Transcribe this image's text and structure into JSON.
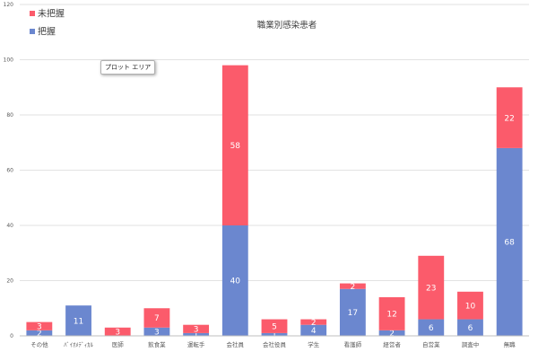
{
  "chart_data": {
    "type": "bar",
    "stacked": true,
    "title": "職業別感染患者",
    "categories": [
      "その他",
      "ﾊﾞｲｵﾒﾃﾞｨｶﾙ",
      "医師",
      "飲食業",
      "運転手",
      "会社員",
      "会社役員",
      "学生",
      "看護師",
      "経営者",
      "自営業",
      "調査中",
      "無職"
    ],
    "series": [
      {
        "name": "把握",
        "color": "#6b87cf",
        "values": [
          2,
          11,
          0,
          3,
          1,
          40,
          1,
          4,
          17,
          2,
          6,
          6,
          68
        ]
      },
      {
        "name": "未把握",
        "color": "#fb5b6b",
        "values": [
          3,
          0,
          3,
          7,
          3,
          58,
          5,
          2,
          2,
          12,
          23,
          10,
          22
        ]
      }
    ],
    "ylim": [
      0,
      120
    ],
    "yticks": [
      0,
      20,
      40,
      60,
      80,
      100,
      120
    ],
    "grid": true,
    "legend": "top-left",
    "legend_items": [
      {
        "label": "未把握",
        "color": "#fb5b6b"
      },
      {
        "label": "把握",
        "color": "#6b87cf"
      }
    ]
  },
  "overlay": {
    "plot_area_label": "プロット エリア"
  }
}
